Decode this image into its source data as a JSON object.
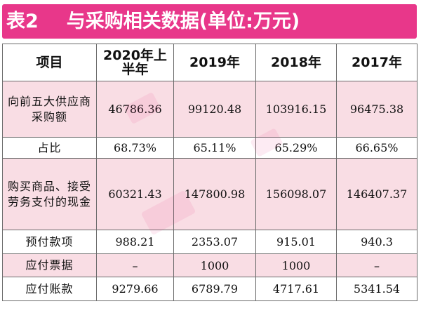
{
  "title": {
    "label": "表2",
    "text": "与采购相关数据(单位:万元)"
  },
  "table": {
    "headers": {
      "item": "项目",
      "h2020": "2020年上半年",
      "h2019": "2019年",
      "h2018": "2018年",
      "h2017": "2017年"
    },
    "rows": [
      {
        "label": "向前五大供应商采购额",
        "v2020": "46786.36",
        "v2019": "99120.48",
        "v2018": "103916.15",
        "v2017": "96475.38"
      },
      {
        "label": "占比",
        "v2020": "68.73%",
        "v2019": "65.11%",
        "v2018": "65.29%",
        "v2017": "66.65%"
      },
      {
        "label": "购买商品、接受劳务支付的现金",
        "v2020": "60321.43",
        "v2019": "147800.98",
        "v2018": "156098.07",
        "v2017": "146407.37"
      },
      {
        "label": "预付款项",
        "v2020": "988.21",
        "v2019": "2353.07",
        "v2018": "915.01",
        "v2017": "940.3"
      },
      {
        "label": "应付票据",
        "v2020": "–",
        "v2019": "1000",
        "v2018": "1000",
        "v2017": "–"
      },
      {
        "label": "应付账款",
        "v2020": "9279.66",
        "v2019": "6789.79",
        "v2018": "4717.61",
        "v2017": "5341.54"
      }
    ]
  },
  "colors": {
    "title_bg": "#e8378a",
    "row_pink": "#f9dde4",
    "border": "#6b6b6b"
  }
}
